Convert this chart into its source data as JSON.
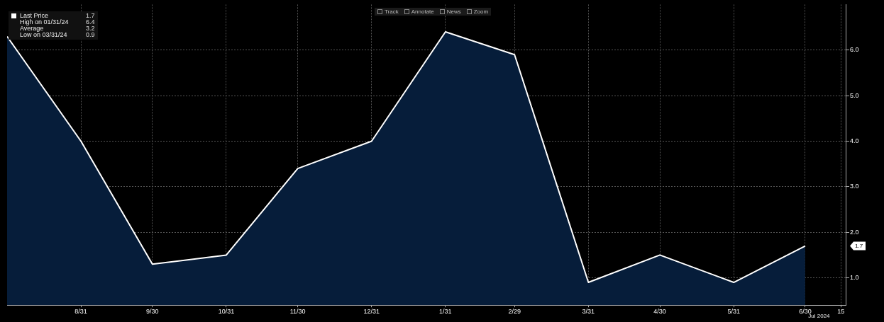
{
  "chart_data": {
    "type": "area",
    "x": [
      "2023-07-31",
      "2023-08-31",
      "2023-09-30",
      "2023-10-31",
      "2023-11-30",
      "2023-12-31",
      "2024-01-31",
      "2024-02-29",
      "2024-03-31",
      "2024-04-30",
      "2024-05-31",
      "2024-06-30"
    ],
    "series": [
      {
        "name": "Last Price",
        "color": "#ffffff",
        "values": [
          6.3,
          4.0,
          1.3,
          1.5,
          3.4,
          4.0,
          6.4,
          5.9,
          0.9,
          1.5,
          0.9,
          1.7
        ]
      }
    ],
    "xlim": [
      "2023-07-31",
      "2024-07-17"
    ],
    "xticks": [
      {
        "value": "2023-08-31",
        "label": "8/31"
      },
      {
        "value": "2023-09-30",
        "label": "9/30"
      },
      {
        "value": "2023-10-31",
        "label": "10/31"
      },
      {
        "value": "2023-11-30",
        "label": "11/30"
      },
      {
        "value": "2023-12-31",
        "label": "12/31"
      },
      {
        "value": "2024-01-31",
        "label": "1/31"
      },
      {
        "value": "2024-02-29",
        "label": "2/29"
      },
      {
        "value": "2024-03-31",
        "label": "3/31"
      },
      {
        "value": "2024-04-30",
        "label": "4/30"
      },
      {
        "value": "2024-05-31",
        "label": "5/31"
      },
      {
        "value": "2024-06-30",
        "label": "6/30"
      },
      {
        "value": "2024-07-15",
        "label": "15"
      }
    ],
    "ylim": [
      0.4,
      7.0
    ],
    "yticks": [
      {
        "value": 1,
        "label": "1.0"
      },
      {
        "value": 2,
        "label": "2.0"
      },
      {
        "value": 3,
        "label": "3.0"
      },
      {
        "value": 4,
        "label": "4.0"
      },
      {
        "value": 5,
        "label": "5.0"
      },
      {
        "value": 6,
        "label": "6.0"
      }
    ],
    "grid": true,
    "legend": "top left",
    "annotations": [
      "1.7",
      "High on 01/31/24",
      "6.4",
      "Average",
      "3.2",
      "Low on 03/31/24",
      "0.9",
      "Track",
      "Annotate",
      "News",
      "Zoom",
      "Jul 2024",
      "1.7"
    ]
  }
}
